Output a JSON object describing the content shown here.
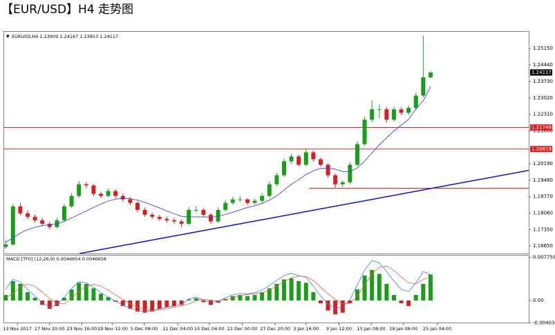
{
  "chart_data": {
    "type": "candlestick",
    "title": "【EUR/USD】H4 走势图",
    "info": "EURUSD,H4  1.23909 1.24167 1.23853 1.24117",
    "macd_title": "MACD [TF0] (12,26,9) 0.0046654 0.0046658",
    "xlim": [
      -0.3,
      71.4
    ],
    "xticks": [
      {
        "value": 1.6,
        "label": "13 Nov 2017"
      },
      {
        "value": 6.0,
        "label": "17 Nov 20:00"
      },
      {
        "value": 10.4,
        "label": "23 Nov 16:00"
      },
      {
        "value": 14.6,
        "label": "29 Nov 12:00"
      },
      {
        "value": 18.9,
        "label": "5 Dec 08:00"
      },
      {
        "value": 23.5,
        "label": "11 Dec 04:00"
      },
      {
        "value": 27.8,
        "label": "15 Dec 04:00"
      },
      {
        "value": 32.3,
        "label": "21 Dec 00:00"
      },
      {
        "value": 36.8,
        "label": "27 Dec 20:00"
      },
      {
        "value": 41.0,
        "label": "3 Jan 16:00"
      },
      {
        "value": 45.5,
        "label": "9 Jan 12:00"
      },
      {
        "value": 49.9,
        "label": "15 Jan 08:00"
      },
      {
        "value": 54.3,
        "label": "19 Jan 08:00"
      },
      {
        "value": 58.9,
        "label": "25 Jan 04:00"
      }
    ],
    "ylim": [
      1.1632,
      1.259
    ],
    "yticks": [
      {
        "value": 1.2515,
        "label": "1.25150"
      },
      {
        "value": 1.2444,
        "label": "1.24440"
      },
      {
        "value": 1.2373,
        "label": "1.23730"
      },
      {
        "value": 1.2302,
        "label": "1.23020"
      },
      {
        "value": 1.2231,
        "label": "1.22310"
      },
      {
        "value": 1.216,
        "label": "1.21600"
      },
      {
        "value": 1.2019,
        "label": "1.20190"
      },
      {
        "value": 1.1948,
        "label": "1.19480"
      },
      {
        "value": 1.1877,
        "label": "1.18770"
      },
      {
        "value": 1.1806,
        "label": "1.18060"
      },
      {
        "value": 1.1735,
        "label": "1.17350"
      },
      {
        "value": 1.1665,
        "label": "1.16650"
      }
    ],
    "up_color": "#1a9e1a",
    "down_color": "#d42020",
    "ohlc": [
      [
        1.166,
        1.169,
        1.1652,
        1.1671
      ],
      [
        1.1671,
        1.1845,
        1.1665,
        1.1835
      ],
      [
        1.1835,
        1.185,
        1.1795,
        1.1805
      ],
      [
        1.1805,
        1.1818,
        1.178,
        1.179
      ],
      [
        1.179,
        1.18,
        1.1765,
        1.1775
      ],
      [
        1.1775,
        1.1785,
        1.175,
        1.176
      ],
      [
        1.176,
        1.177,
        1.1736,
        1.1746
      ],
      [
        1.1746,
        1.1785,
        1.174,
        1.1775
      ],
      [
        1.1775,
        1.1845,
        1.177,
        1.1835
      ],
      [
        1.1835,
        1.1892,
        1.1828,
        1.188
      ],
      [
        1.188,
        1.1945,
        1.1872,
        1.193
      ],
      [
        1.193,
        1.194,
        1.1912,
        1.1925
      ],
      [
        1.1925,
        1.1932,
        1.1878,
        1.1889
      ],
      [
        1.1889,
        1.1898,
        1.187,
        1.188
      ],
      [
        1.188,
        1.1912,
        1.1874,
        1.1901
      ],
      [
        1.1901,
        1.1908,
        1.187,
        1.188
      ],
      [
        1.188,
        1.189,
        1.1855,
        1.1865
      ],
      [
        1.1865,
        1.1875,
        1.184,
        1.185
      ],
      [
        1.185,
        1.1858,
        1.181,
        1.182
      ],
      [
        1.182,
        1.183,
        1.179,
        1.1799
      ],
      [
        1.1799,
        1.1808,
        1.178,
        1.179
      ],
      [
        1.179,
        1.18,
        1.1772,
        1.1781
      ],
      [
        1.1781,
        1.179,
        1.1765,
        1.1775
      ],
      [
        1.1775,
        1.1785,
        1.176,
        1.177
      ],
      [
        1.177,
        1.1778,
        1.1745,
        1.176
      ],
      [
        1.176,
        1.1832,
        1.1755,
        1.182
      ],
      [
        1.182,
        1.1835,
        1.181,
        1.182
      ],
      [
        1.182,
        1.1828,
        1.179,
        1.1799
      ],
      [
        1.1799,
        1.1806,
        1.176,
        1.177
      ],
      [
        1.177,
        1.183,
        1.1765,
        1.182
      ],
      [
        1.182,
        1.1862,
        1.1812,
        1.185
      ],
      [
        1.185,
        1.1876,
        1.1842,
        1.1865
      ],
      [
        1.1865,
        1.188,
        1.1855,
        1.1865
      ],
      [
        1.1865,
        1.1872,
        1.184,
        1.185
      ],
      [
        1.185,
        1.1868,
        1.1844,
        1.1859
      ],
      [
        1.1859,
        1.1892,
        1.1852,
        1.188
      ],
      [
        1.188,
        1.1942,
        1.1874,
        1.193
      ],
      [
        1.193,
        1.198,
        1.1922,
        1.1969
      ],
      [
        1.1969,
        1.204,
        1.1962,
        1.2029
      ],
      [
        1.2029,
        1.2062,
        1.202,
        1.205
      ],
      [
        1.205,
        1.2058,
        1.2005,
        1.2014
      ],
      [
        1.2014,
        1.208,
        1.2008,
        1.2068
      ],
      [
        1.2068,
        1.2075,
        1.2028,
        1.2038
      ],
      [
        1.2038,
        1.2045,
        1.2005,
        1.2014
      ],
      [
        1.2014,
        1.202,
        1.1958,
        1.1969
      ],
      [
        1.1969,
        1.1976,
        1.1915,
        1.193
      ],
      [
        1.193,
        1.1948,
        1.1918,
        1.1939
      ],
      [
        1.1939,
        1.2025,
        1.1932,
        1.2014
      ],
      [
        1.2014,
        1.2115,
        1.2008,
        1.2103
      ],
      [
        1.2103,
        1.2222,
        1.2095,
        1.2208
      ],
      [
        1.2208,
        1.229,
        1.2198,
        1.2253
      ],
      [
        1.2253,
        1.2275,
        1.2215,
        1.2253
      ],
      [
        1.2253,
        1.2262,
        1.2195,
        1.2208
      ],
      [
        1.2208,
        1.2265,
        1.22,
        1.2253
      ],
      [
        1.2253,
        1.2262,
        1.2228,
        1.2238
      ],
      [
        1.2238,
        1.227,
        1.223,
        1.2259
      ],
      [
        1.2259,
        1.2325,
        1.225,
        1.2312
      ],
      [
        1.2312,
        1.257,
        1.2305,
        1.23909
      ],
      [
        1.23909,
        1.24167,
        1.23853,
        1.24117
      ]
    ],
    "ma": {
      "color": "#3344dd",
      "values": [
        1.168,
        1.17,
        1.172,
        1.1735,
        1.1745,
        1.1752,
        1.1756,
        1.176,
        1.177,
        1.1785,
        1.18,
        1.1815,
        1.183,
        1.1845,
        1.1858,
        1.1866,
        1.187,
        1.1868,
        1.1862,
        1.1852,
        1.184,
        1.1828,
        1.1815,
        1.1803,
        1.1792,
        1.179,
        1.179,
        1.179,
        1.1788,
        1.1792,
        1.18,
        1.181,
        1.182,
        1.183,
        1.1838,
        1.1848,
        1.1862,
        1.188,
        1.1905,
        1.193,
        1.195,
        1.1972,
        1.1988,
        1.1998,
        1.2,
        1.1995,
        1.1985,
        1.1985,
        1.2,
        1.203,
        1.2065,
        1.21,
        1.213,
        1.216,
        1.2185,
        1.221,
        1.2255,
        1.229,
        1.2351
      ]
    },
    "current_price": 1.24117,
    "levels": {
      "color": "#e02020",
      "values": [
        1.21748,
        1.20819
      ]
    },
    "support": {
      "color": "#e02020",
      "x": [
        41.4,
        71.4
      ],
      "value": 1.1913
    },
    "trendline": {
      "color": "#1a1ad0",
      "x": [
        10.1,
        71.4
      ],
      "values": [
        1.1632,
        1.199
      ]
    },
    "macd_ylim": [
      -0.0041,
      0.0081
    ],
    "macd_yticks": [
      0.007758,
      {
        "value": 0,
        "label": "0.00"
      },
      -0.004034
    ],
    "macd_hist": [
      0.001,
      0.0035,
      0.003,
      0.0015,
      0.0005,
      -0.0008,
      -0.0015,
      -0.001,
      0.0005,
      0.002,
      0.0032,
      0.003,
      0.0022,
      0.0012,
      0.0006,
      -0.0002,
      -0.001,
      -0.0015,
      -0.002,
      -0.0022,
      -0.002,
      -0.0015,
      -0.0012,
      -0.001,
      -0.0008,
      0.0002,
      0.0004,
      -0.0003,
      -0.0008,
      -0.0004,
      0.0003,
      0.0008,
      0.001,
      0.0008,
      0.001,
      0.0015,
      0.0022,
      0.003,
      0.0038,
      0.004,
      0.0035,
      0.0032,
      0.0015,
      -0.0005,
      -0.0018,
      -0.0025,
      -0.0022,
      -0.0005,
      0.002,
      0.0045,
      0.0055,
      0.0048,
      0.003,
      0.001,
      -0.0005,
      -0.001,
      0.001,
      0.003,
      0.0046654
    ],
    "macd_line1": {
      "color": "#3a7be0",
      "values": [
        0.002,
        0.0038,
        0.0034,
        0.002,
        0.0008,
        -0.0004,
        -0.0012,
        -0.0008,
        0.0006,
        0.0022,
        0.0034,
        0.0032,
        0.0024,
        0.0014,
        0.0006,
        -0.0001,
        -0.0008,
        -0.0014,
        -0.0018,
        -0.002,
        -0.0019,
        -0.0015,
        -0.0012,
        -0.001,
        -0.0007,
        0.0003,
        0.0006,
        0.0001,
        -0.0004,
        -0.0001,
        0.0005,
        0.001,
        0.0013,
        0.0012,
        0.0014,
        0.0019,
        0.0027,
        0.0036,
        0.0045,
        0.0049,
        0.0045,
        0.0042,
        0.0026,
        0.0008,
        -0.0006,
        -0.0014,
        -0.0012,
        0.0002,
        0.0028,
        0.0055,
        0.0072,
        0.0068,
        0.0052,
        0.0035,
        0.002,
        0.0016,
        0.0032,
        0.0052,
        0.0046658
      ]
    },
    "macd_line2": {
      "color": "#e0603a",
      "values": [
        0.0005,
        0.0012,
        0.0025,
        0.003,
        0.0025,
        0.0015,
        0.0004,
        -0.0005,
        -0.0006,
        0.0004,
        0.0016,
        0.0026,
        0.0029,
        0.0026,
        0.0019,
        0.001,
        0.0002,
        -0.0006,
        -0.0012,
        -0.0016,
        -0.0018,
        -0.0017,
        -0.0015,
        -0.0012,
        -0.001,
        -0.0006,
        -0.0001,
        0.0002,
        0.0001,
        -0.0001,
        0.0001,
        0.0005,
        0.0009,
        0.0011,
        0.0012,
        0.0014,
        0.0019,
        0.0026,
        0.0034,
        0.0041,
        0.0044,
        0.0043,
        0.0036,
        0.0024,
        0.0012,
        0.0002,
        -0.0006,
        -0.0005,
        0.0008,
        0.0028,
        0.0048,
        0.006,
        0.0062,
        0.0054,
        0.0042,
        0.0032,
        0.003,
        0.0038,
        0.0042
      ]
    }
  }
}
